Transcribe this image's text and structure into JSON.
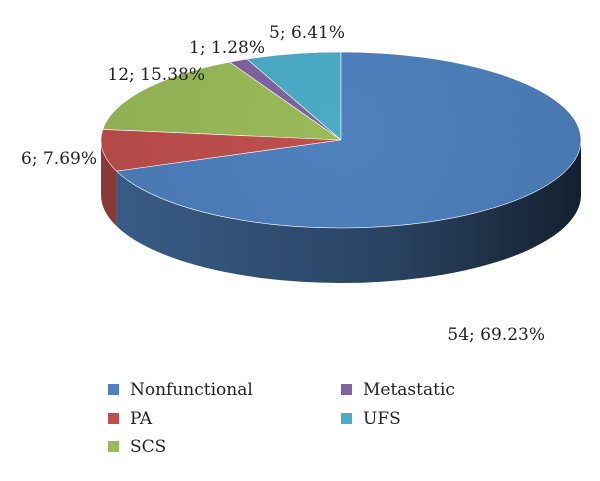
{
  "chart_data": {
    "type": "pie",
    "style": "3d",
    "title": "",
    "slices": [
      {
        "name": "Nonfunctional",
        "count": 54,
        "percent": 69.23,
        "label": "54; 69.23%",
        "color": "#4f81bd"
      },
      {
        "name": "PA",
        "count": 6,
        "percent": 7.69,
        "label": "6; 7.69%",
        "color": "#c0504d"
      },
      {
        "name": "SCS",
        "count": 12,
        "percent": 15.38,
        "label": "12; 15.38%",
        "color": "#9bbb59"
      },
      {
        "name": "Metastatic",
        "count": 1,
        "percent": 1.28,
        "label": "1; 1.28%",
        "color": "#8064a2"
      },
      {
        "name": "UFS",
        "count": 5,
        "percent": 6.41,
        "label": "5; 6.41%",
        "color": "#4bacc6"
      }
    ],
    "legend": {
      "position": "bottom",
      "order": [
        "Nonfunctional",
        "PA",
        "SCS",
        "Metastatic",
        "UFS"
      ]
    }
  }
}
